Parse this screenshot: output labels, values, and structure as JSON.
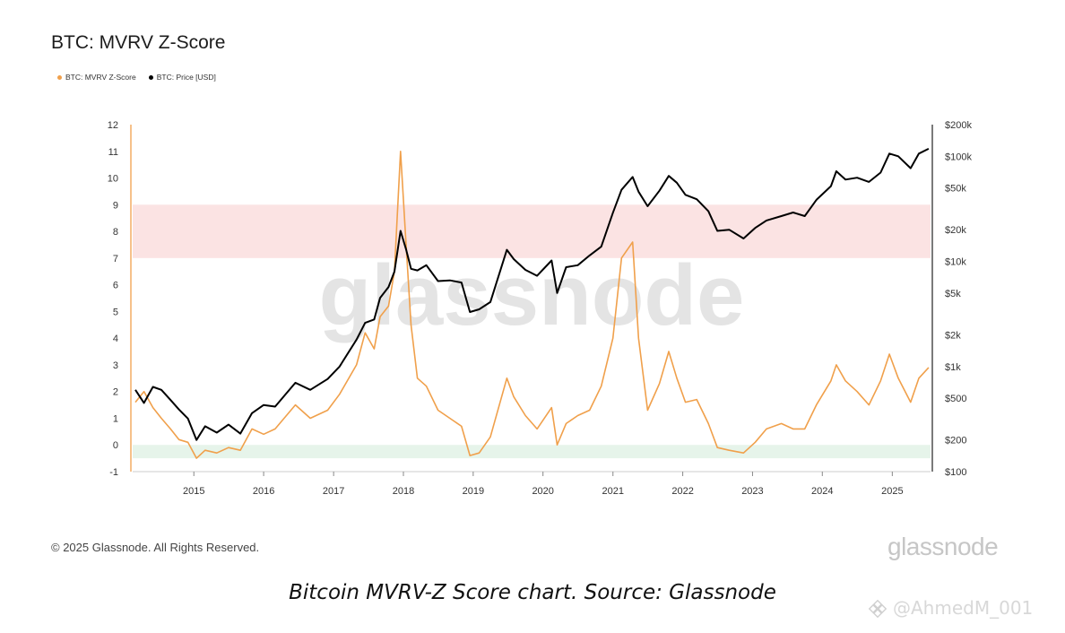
{
  "header": {
    "title": "BTC: MVRV Z-Score"
  },
  "legend": [
    {
      "label": "BTC: MVRV Z-Score",
      "color": "#f0a04b"
    },
    {
      "label": "BTC: Price [USD]",
      "color": "#000000"
    }
  ],
  "footer": {
    "copyright": "© 2025 Glassnode. All Rights Reserved.",
    "brand": "glassnode",
    "caption": "Bitcoin MVRV-Z Score chart. Source: Glassnode",
    "handle": "@AhmedM_001"
  },
  "watermark": "glassnode",
  "chart_data": {
    "type": "line",
    "title": "BTC: MVRV Z-Score",
    "x_ticks": [
      "2015",
      "2016",
      "2017",
      "2018",
      "2019",
      "2020",
      "2021",
      "2022",
      "2023",
      "2024",
      "2025"
    ],
    "y_left": {
      "ticks": [
        -1,
        0,
        1,
        2,
        3,
        4,
        5,
        6,
        7,
        8,
        9,
        10,
        11,
        12
      ],
      "range": [
        -1,
        12
      ]
    },
    "y_right": {
      "scale": "log",
      "ticks": [
        "$100",
        "$200",
        "$500",
        "$1k",
        "$2k",
        "$5k",
        "$10k",
        "$20k",
        "$50k",
        "$100k",
        "$200k"
      ],
      "tick_values": [
        100,
        200,
        500,
        1000,
        2000,
        5000,
        10000,
        20000,
        50000,
        100000,
        200000
      ],
      "range": [
        100,
        200000
      ]
    },
    "bands": [
      {
        "from": 7,
        "to": 9,
        "color": "#fbe3e3"
      },
      {
        "from": -0.5,
        "to": 0,
        "color": "#e6f4ea"
      }
    ],
    "series": [
      {
        "name": "BTC: MVRV Z-Score",
        "color": "#f0a04b",
        "axis": "left",
        "points": [
          [
            "2014-03-01",
            1.6
          ],
          [
            "2014-04-15",
            2.0
          ],
          [
            "2014-06-01",
            1.4
          ],
          [
            "2014-07-15",
            1.0
          ],
          [
            "2014-09-01",
            0.6
          ],
          [
            "2014-10-15",
            0.2
          ],
          [
            "2014-12-01",
            0.1
          ],
          [
            "2015-01-15",
            -0.5
          ],
          [
            "2015-03-01",
            -0.2
          ],
          [
            "2015-05-01",
            -0.3
          ],
          [
            "2015-07-01",
            -0.1
          ],
          [
            "2015-09-01",
            -0.2
          ],
          [
            "2015-11-01",
            0.6
          ],
          [
            "2016-01-01",
            0.4
          ],
          [
            "2016-03-01",
            0.6
          ],
          [
            "2016-06-15",
            1.5
          ],
          [
            "2016-09-01",
            1.0
          ],
          [
            "2016-12-01",
            1.3
          ],
          [
            "2017-02-01",
            1.9
          ],
          [
            "2017-05-01",
            3.0
          ],
          [
            "2017-06-15",
            4.2
          ],
          [
            "2017-08-01",
            3.6
          ],
          [
            "2017-09-01",
            4.8
          ],
          [
            "2017-10-15",
            5.2
          ],
          [
            "2017-11-15",
            6.5
          ],
          [
            "2017-12-17",
            11.0
          ],
          [
            "2018-01-15",
            7.5
          ],
          [
            "2018-02-10",
            4.5
          ],
          [
            "2018-03-15",
            2.5
          ],
          [
            "2018-05-01",
            2.2
          ],
          [
            "2018-07-01",
            1.3
          ],
          [
            "2018-09-01",
            1.0
          ],
          [
            "2018-11-01",
            0.7
          ],
          [
            "2018-12-15",
            -0.4
          ],
          [
            "2019-02-01",
            -0.3
          ],
          [
            "2019-04-01",
            0.3
          ],
          [
            "2019-06-26",
            2.5
          ],
          [
            "2019-08-01",
            1.8
          ],
          [
            "2019-10-01",
            1.1
          ],
          [
            "2019-12-01",
            0.6
          ],
          [
            "2020-02-15",
            1.4
          ],
          [
            "2020-03-15",
            0.0
          ],
          [
            "2020-05-01",
            0.8
          ],
          [
            "2020-07-01",
            1.1
          ],
          [
            "2020-09-01",
            1.3
          ],
          [
            "2020-11-01",
            2.2
          ],
          [
            "2021-01-01",
            4.0
          ],
          [
            "2021-02-15",
            7.0
          ],
          [
            "2021-04-14",
            7.6
          ],
          [
            "2021-05-15",
            4.0
          ],
          [
            "2021-07-01",
            1.3
          ],
          [
            "2021-09-01",
            2.3
          ],
          [
            "2021-10-20",
            3.5
          ],
          [
            "2021-12-01",
            2.5
          ],
          [
            "2022-01-15",
            1.6
          ],
          [
            "2022-03-15",
            1.7
          ],
          [
            "2022-05-15",
            0.8
          ],
          [
            "2022-07-01",
            -0.1
          ],
          [
            "2022-09-01",
            -0.2
          ],
          [
            "2022-11-15",
            -0.3
          ],
          [
            "2023-01-15",
            0.1
          ],
          [
            "2023-03-15",
            0.6
          ],
          [
            "2023-06-01",
            0.8
          ],
          [
            "2023-08-01",
            0.6
          ],
          [
            "2023-10-01",
            0.6
          ],
          [
            "2023-12-01",
            1.5
          ],
          [
            "2024-02-15",
            2.4
          ],
          [
            "2024-03-14",
            3.0
          ],
          [
            "2024-05-01",
            2.4
          ],
          [
            "2024-07-01",
            2.0
          ],
          [
            "2024-09-01",
            1.5
          ],
          [
            "2024-11-01",
            2.4
          ],
          [
            "2024-12-17",
            3.4
          ],
          [
            "2025-02-01",
            2.5
          ],
          [
            "2025-04-07",
            1.6
          ],
          [
            "2025-05-20",
            2.5
          ],
          [
            "2025-07-10",
            2.9
          ]
        ]
      },
      {
        "name": "BTC: Price [USD]",
        "color": "#000000",
        "axis": "right",
        "points": [
          [
            "2014-03-01",
            600
          ],
          [
            "2014-04-15",
            450
          ],
          [
            "2014-06-01",
            640
          ],
          [
            "2014-07-15",
            600
          ],
          [
            "2014-09-01",
            480
          ],
          [
            "2014-10-15",
            390
          ],
          [
            "2014-12-01",
            320
          ],
          [
            "2015-01-15",
            200
          ],
          [
            "2015-03-01",
            270
          ],
          [
            "2015-05-01",
            235
          ],
          [
            "2015-07-01",
            280
          ],
          [
            "2015-09-01",
            230
          ],
          [
            "2015-11-01",
            360
          ],
          [
            "2016-01-01",
            430
          ],
          [
            "2016-03-01",
            415
          ],
          [
            "2016-06-15",
            700
          ],
          [
            "2016-09-01",
            600
          ],
          [
            "2016-12-01",
            760
          ],
          [
            "2017-02-01",
            1000
          ],
          [
            "2017-05-01",
            1800
          ],
          [
            "2017-06-15",
            2600
          ],
          [
            "2017-08-01",
            2800
          ],
          [
            "2017-09-01",
            4500
          ],
          [
            "2017-10-15",
            5700
          ],
          [
            "2017-11-15",
            8000
          ],
          [
            "2017-12-17",
            19500
          ],
          [
            "2018-01-15",
            13000
          ],
          [
            "2018-02-10",
            8500
          ],
          [
            "2018-03-15",
            8200
          ],
          [
            "2018-05-01",
            9200
          ],
          [
            "2018-07-01",
            6500
          ],
          [
            "2018-09-01",
            6600
          ],
          [
            "2018-11-01",
            6300
          ],
          [
            "2018-12-15",
            3300
          ],
          [
            "2019-02-01",
            3500
          ],
          [
            "2019-04-01",
            4100
          ],
          [
            "2019-06-26",
            12900
          ],
          [
            "2019-08-01",
            10500
          ],
          [
            "2019-10-01",
            8300
          ],
          [
            "2019-12-01",
            7300
          ],
          [
            "2020-02-15",
            10200
          ],
          [
            "2020-03-15",
            5000
          ],
          [
            "2020-05-01",
            8800
          ],
          [
            "2020-07-01",
            9200
          ],
          [
            "2020-09-01",
            11400
          ],
          [
            "2020-11-01",
            13800
          ],
          [
            "2021-01-01",
            29000
          ],
          [
            "2021-02-15",
            48000
          ],
          [
            "2021-04-14",
            63500
          ],
          [
            "2021-05-15",
            46000
          ],
          [
            "2021-07-01",
            33500
          ],
          [
            "2021-09-01",
            47000
          ],
          [
            "2021-10-20",
            65000
          ],
          [
            "2021-12-01",
            56000
          ],
          [
            "2022-01-15",
            43000
          ],
          [
            "2022-03-15",
            39000
          ],
          [
            "2022-05-15",
            30000
          ],
          [
            "2022-07-01",
            19500
          ],
          [
            "2022-09-01",
            20000
          ],
          [
            "2022-11-15",
            16500
          ],
          [
            "2023-01-15",
            20800
          ],
          [
            "2023-03-15",
            24500
          ],
          [
            "2023-06-01",
            27000
          ],
          [
            "2023-08-01",
            29200
          ],
          [
            "2023-10-01",
            27000
          ],
          [
            "2023-12-01",
            38500
          ],
          [
            "2024-02-15",
            52000
          ],
          [
            "2024-03-14",
            72000
          ],
          [
            "2024-05-01",
            60000
          ],
          [
            "2024-07-01",
            62500
          ],
          [
            "2024-09-01",
            57000
          ],
          [
            "2024-11-01",
            70000
          ],
          [
            "2024-12-17",
            106000
          ],
          [
            "2025-02-01",
            100000
          ],
          [
            "2025-04-07",
            77000
          ],
          [
            "2025-05-20",
            106000
          ],
          [
            "2025-07-10",
            118000
          ]
        ]
      }
    ]
  }
}
